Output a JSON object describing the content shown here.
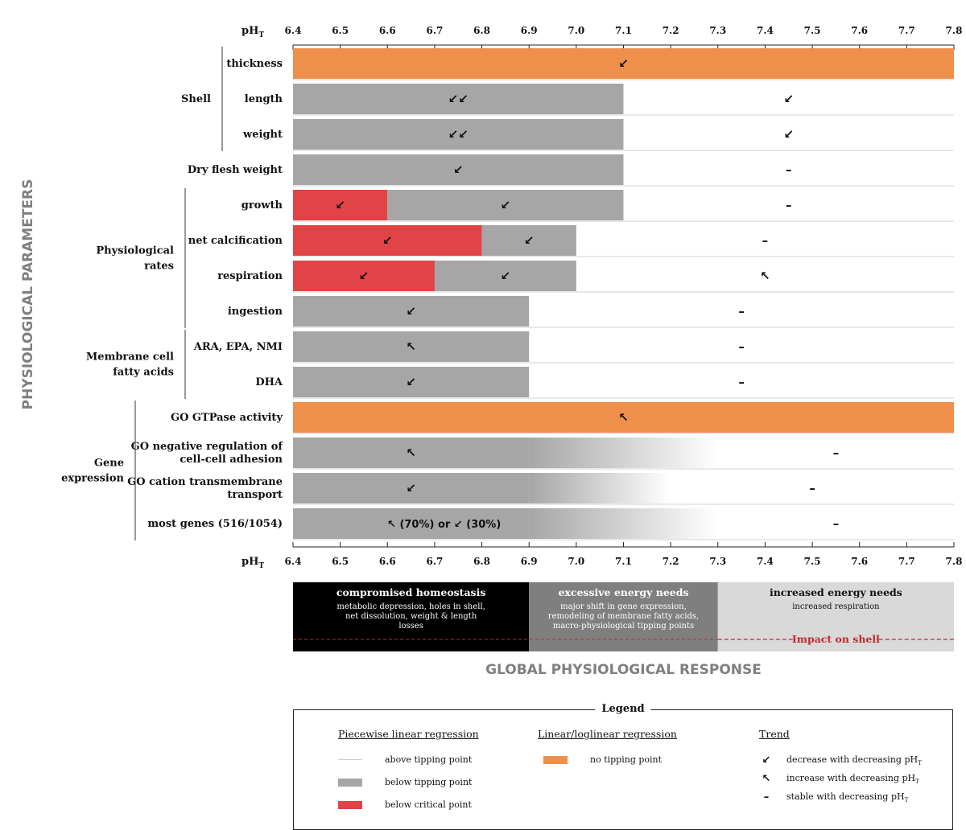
{
  "chart_data": {
    "type": "bar",
    "y_axis_title": "PHYSIOLOGICAL PARAMETERS",
    "x_axis_title": "GLOBAL PHYSIOLOGICAL RESPONSE",
    "axis_label_main": "pH",
    "axis_label_sub": "T",
    "xlim": [
      6.4,
      7.8
    ],
    "ticks": [
      "6.4",
      "6.5",
      "6.6",
      "6.7",
      "6.8",
      "6.9",
      "7.0",
      "7.1",
      "7.2",
      "7.3",
      "7.4",
      "7.5",
      "7.6",
      "7.7",
      "7.8"
    ],
    "colors": {
      "orange": "#EE8F4C",
      "gray": "#A6A6A6",
      "red": "#E04447"
    },
    "groups": [
      {
        "name": "Shell",
        "first": 0,
        "last": 2
      },
      {
        "name": "Physiological rates",
        "first": 4,
        "last": 7
      },
      {
        "name": "Membrane cell fatty acids",
        "first": 8,
        "last": 9
      },
      {
        "name": "Gene expression",
        "first": 10,
        "last": 13
      }
    ],
    "rows": [
      {
        "label": "thickness",
        "segments": [
          {
            "from": 6.4,
            "to": 7.8,
            "color": "orange"
          }
        ],
        "arrows": [
          {
            "x": 7.1,
            "t": "↙"
          }
        ]
      },
      {
        "label": "length",
        "segments": [
          {
            "from": 6.4,
            "to": 7.1,
            "color": "gray"
          }
        ],
        "arrows": [
          {
            "x": 6.75,
            "t": "↙↙"
          },
          {
            "x": 7.45,
            "t": "↙"
          }
        ]
      },
      {
        "label": "weight",
        "segments": [
          {
            "from": 6.4,
            "to": 7.1,
            "color": "gray"
          }
        ],
        "arrows": [
          {
            "x": 6.75,
            "t": "↙↙"
          },
          {
            "x": 7.45,
            "t": "↙"
          }
        ]
      },
      {
        "label": "Dry flesh weight",
        "segments": [
          {
            "from": 6.4,
            "to": 7.1,
            "color": "gray"
          }
        ],
        "arrows": [
          {
            "x": 6.75,
            "t": "↙"
          },
          {
            "x": 7.45,
            "t": "–"
          }
        ]
      },
      {
        "label": "growth",
        "segments": [
          {
            "from": 6.4,
            "to": 6.6,
            "color": "red"
          },
          {
            "from": 6.6,
            "to": 7.1,
            "color": "gray"
          }
        ],
        "arrows": [
          {
            "x": 6.5,
            "t": "↙"
          },
          {
            "x": 6.85,
            "t": "↙"
          },
          {
            "x": 7.45,
            "t": "–"
          }
        ]
      },
      {
        "label": "net calcification",
        "segments": [
          {
            "from": 6.4,
            "to": 6.8,
            "color": "red"
          },
          {
            "from": 6.8,
            "to": 7.0,
            "color": "gray"
          }
        ],
        "arrows": [
          {
            "x": 6.6,
            "t": "↙"
          },
          {
            "x": 6.9,
            "t": "↙"
          },
          {
            "x": 7.4,
            "t": "–"
          }
        ]
      },
      {
        "label": "respiration",
        "segments": [
          {
            "from": 6.4,
            "to": 6.7,
            "color": "red"
          },
          {
            "from": 6.7,
            "to": 7.0,
            "color": "gray"
          }
        ],
        "arrows": [
          {
            "x": 6.55,
            "t": "↙"
          },
          {
            "x": 6.85,
            "t": "↙"
          },
          {
            "x": 7.4,
            "t": "↖"
          }
        ]
      },
      {
        "label": "ingestion",
        "segments": [
          {
            "from": 6.4,
            "to": 6.9,
            "color": "gray"
          }
        ],
        "arrows": [
          {
            "x": 6.65,
            "t": "↙"
          },
          {
            "x": 7.35,
            "t": "–"
          }
        ]
      },
      {
        "label": "ARA, EPA, NMI",
        "segments": [
          {
            "from": 6.4,
            "to": 6.9,
            "color": "gray"
          }
        ],
        "arrows": [
          {
            "x": 6.65,
            "t": "↖"
          },
          {
            "x": 7.35,
            "t": "–"
          }
        ]
      },
      {
        "label": "DHA",
        "segments": [
          {
            "from": 6.4,
            "to": 6.9,
            "color": "gray"
          }
        ],
        "arrows": [
          {
            "x": 6.65,
            "t": "↙"
          },
          {
            "x": 7.35,
            "t": "–"
          }
        ]
      },
      {
        "label": "GO GTPase activity",
        "segments": [
          {
            "from": 6.4,
            "to": 7.8,
            "color": "orange"
          }
        ],
        "arrows": [
          {
            "x": 7.1,
            "t": "↖"
          }
        ]
      },
      {
        "label": "GO negative regulation of cell-cell adhesion",
        "segments": [
          {
            "from": 6.4,
            "to": 6.9,
            "color": "gray"
          },
          {
            "from": 6.9,
            "to": 7.3,
            "color": "fade"
          }
        ],
        "arrows": [
          {
            "x": 6.65,
            "t": "↖"
          },
          {
            "x": 7.55,
            "t": "–"
          }
        ]
      },
      {
        "label": "GO cation transmembrane transport",
        "segments": [
          {
            "from": 6.4,
            "to": 6.9,
            "color": "gray"
          },
          {
            "from": 6.9,
            "to": 7.2,
            "color": "fade"
          }
        ],
        "arrows": [
          {
            "x": 6.65,
            "t": "↙"
          },
          {
            "x": 7.5,
            "t": "–"
          }
        ]
      },
      {
        "label": "most genes (516/1054)",
        "segments": [
          {
            "from": 6.4,
            "to": 6.9,
            "color": "gray"
          },
          {
            "from": 6.9,
            "to": 7.3,
            "color": "fade"
          }
        ],
        "arrows": [
          {
            "x": 6.72,
            "t": "↖ (70%) or ↙ (30%)"
          },
          {
            "x": 7.55,
            "t": "–"
          }
        ]
      }
    ],
    "responses": [
      {
        "title": "compromised homeostasis",
        "desc": "metabolic depression, holes in shell, net dissolution, weight & length losses",
        "from": 6.4,
        "to": 6.9,
        "bg": "#000000",
        "fg": "#ffffff"
      },
      {
        "title": "excessive energy needs",
        "desc": "major shift in gene expression, remodeling of membrane fatty acids, macro-physiological tipping points",
        "from": 6.9,
        "to": 7.3,
        "bg": "#7F7F7F",
        "fg": "#ffffff"
      },
      {
        "title": "increased energy needs",
        "desc": "increased respiration",
        "from": 7.3,
        "to": 7.8,
        "bg": "#D9D9D9",
        "fg": "#111111"
      }
    ],
    "impact_label": "Impact on shell"
  },
  "legend": {
    "title": "Legend",
    "pw_head": "Piecewise linear regression",
    "pw_above": "above tipping point",
    "pw_below": "below tipping point",
    "pw_crit": "below critical point",
    "lin_head": "Linear/loglinear regression",
    "lin_no": "no tipping point",
    "trend_head": "Trend",
    "tr_dec_arrow": "↙",
    "tr_dec": "decrease with decreasing pH",
    "tr_inc_arrow": "↖",
    "tr_inc": "increase with decreasing pH",
    "tr_stab_arrow": "–",
    "tr_stab": "stable with decreasing pH",
    "sub_T": "T"
  }
}
